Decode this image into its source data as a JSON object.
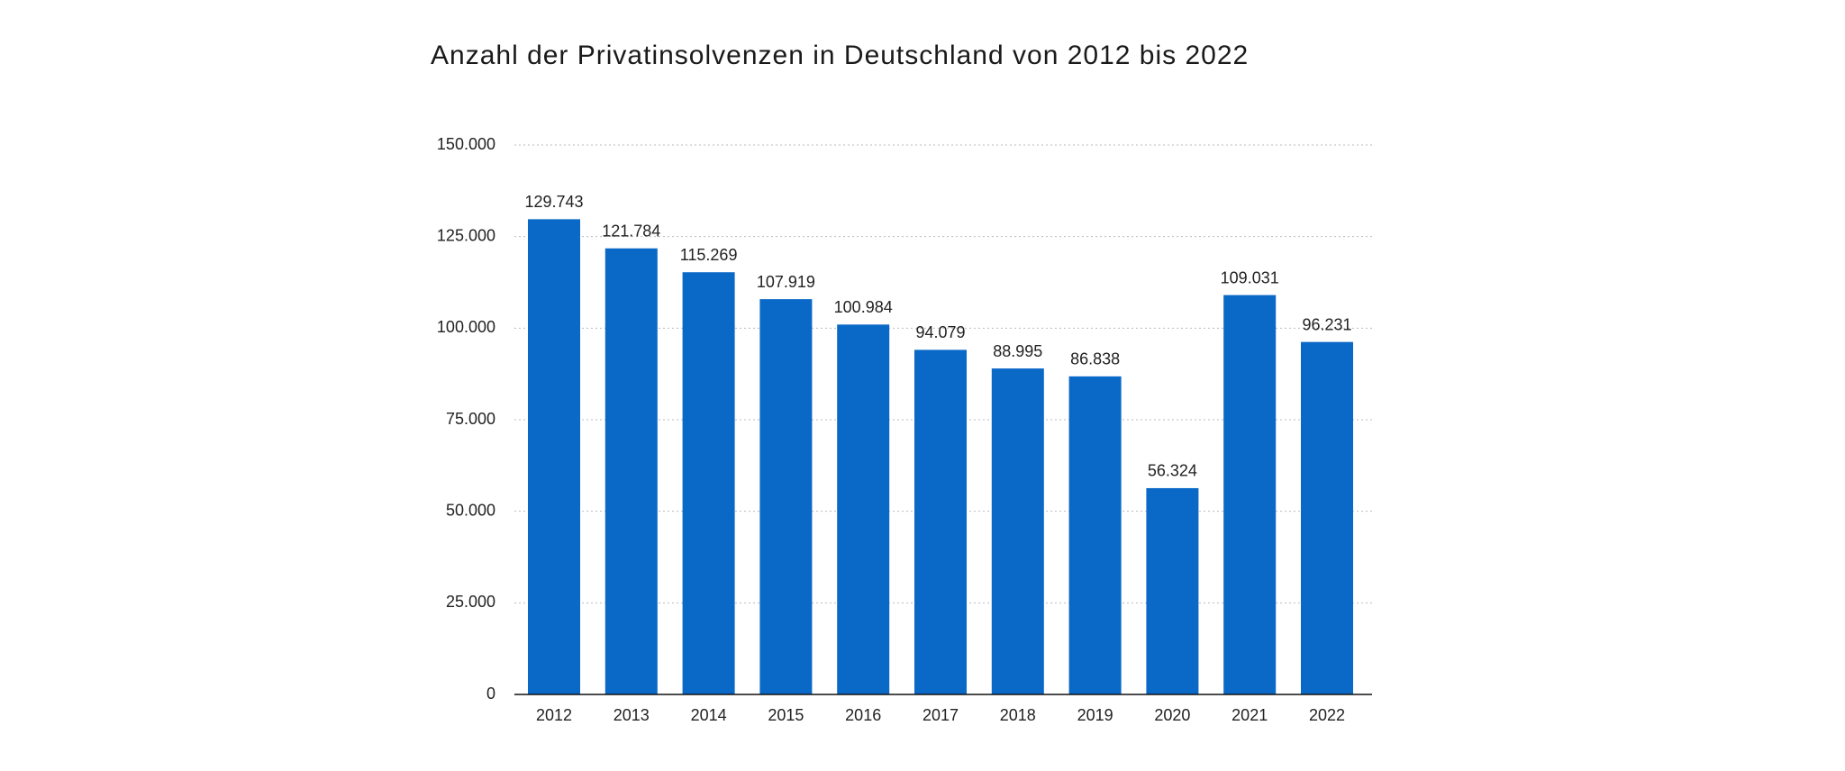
{
  "chart_data": {
    "type": "bar",
    "title": "Anzahl der Privatinsolvenzen in Deutschland von 2012 bis 2022",
    "categories": [
      "2012",
      "2013",
      "2014",
      "2015",
      "2016",
      "2017",
      "2018",
      "2019",
      "2020",
      "2021",
      "2022"
    ],
    "values": [
      129743,
      121784,
      115269,
      107919,
      100984,
      94079,
      88995,
      86838,
      56324,
      109031,
      96231
    ],
    "value_labels": [
      "129.743",
      "121.784",
      "115.269",
      "107.919",
      "100.984",
      "94.079",
      "88.995",
      "86.838",
      "56.324",
      "109.031",
      "96.231"
    ],
    "color": "#0a69c7",
    "ylim": [
      0,
      150000
    ],
    "yticks": [
      0,
      {
        "value": 25000,
        "label": "25.000"
      },
      {
        "value": 50000,
        "label": "50.000"
      },
      {
        "value": 75000,
        "label": "75.000"
      },
      {
        "value": 100000,
        "label": "100.000"
      },
      {
        "value": 125000,
        "label": "125.000"
      },
      {
        "value": 150000,
        "label": "150.000"
      }
    ],
    "grid": true
  }
}
